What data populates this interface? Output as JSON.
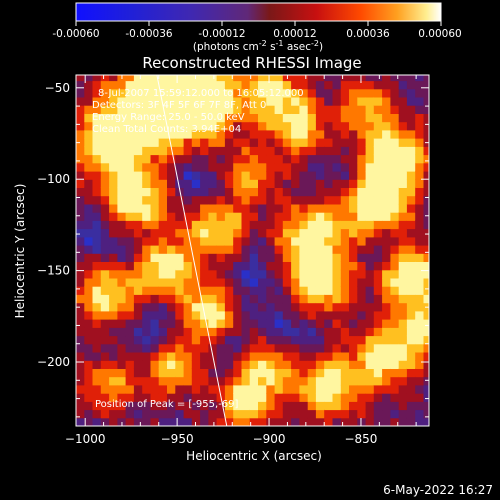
{
  "colorbar": {
    "ticks": [
      "-0.00060",
      "-0.00036",
      "-0.00012",
      "0.00012",
      "0.00036",
      "0.00060"
    ],
    "tick_values": [
      -0.0006,
      -0.00036,
      -0.00012,
      0.00012,
      0.00036,
      0.0006
    ],
    "range": [
      -0.0006,
      0.0006
    ],
    "units_text": "(photons cm",
    "units_exp1": "-2",
    "units_mid": " s",
    "units_exp2": "-1",
    "units_end": " asec",
    "units_exp3": "-2",
    "units_close": ")"
  },
  "plot": {
    "title": "Reconstructed RHESSI Image",
    "annotations": [
      "8-Jul-2007 15:59:12.000 to 16:05:12.000",
      "Detectors: 3F 4F 5F 6F 7F 8F, Att 0",
      "Energy Range: 25.0 - 50.0 keV",
      "Clean   Total Counts: 3.94E+04"
    ],
    "peak_text": "Position of Peak = [-955,-69]",
    "footer": "6-May-2022 16:27"
  },
  "chart_data": {
    "type": "heatmap",
    "title": "Reconstructed RHESSI Image",
    "xlabel": "Heliocentric X (arcsec)",
    "ylabel": "Heliocentric Y (arcsec)",
    "xlim": [
      -1005,
      -813
    ],
    "ylim": [
      -235,
      -43
    ],
    "x_ticks": [
      -1000,
      -950,
      -900,
      -850
    ],
    "x_tick_labels": [
      "−1000",
      "−950",
      "−900",
      "−850"
    ],
    "y_ticks": [
      -50,
      -100,
      -150,
      -200
    ],
    "y_tick_labels": [
      "−50",
      "−100",
      "−150",
      "−200"
    ],
    "peak": [
      -955,
      -69
    ],
    "limb_line": [
      [
        -961,
        -43
      ],
      [
        -923,
        -235
      ]
    ],
    "colormap": "rhessi-blue-purple-red-yellow"
  },
  "colors": {
    "background": "#000000",
    "foreground": "#ffffff"
  }
}
